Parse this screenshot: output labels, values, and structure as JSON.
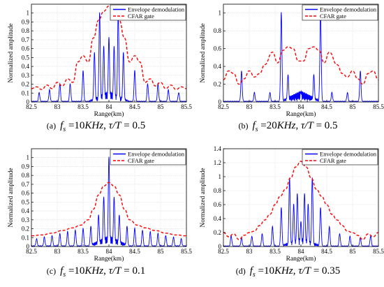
{
  "legend": {
    "envelope": "Envelope demodulation",
    "cfar": "CFAR gate"
  },
  "colors": {
    "envelope": "#0000ff",
    "cfar": "#ff0000"
  },
  "chart_data": [
    {
      "type": "line",
      "caption_tag": "(a)",
      "caption_eq": "f_s = 10KHz, τ/T = 0.5",
      "caption_parts": [
        "f",
        "s",
        " =10",
        "KHz",
        ", ",
        "τ",
        "/",
        "T",
        " = 0.5"
      ],
      "xlabel": "Range(km)",
      "ylabel": "Normalized amplitude",
      "xlim": [
        82.5,
        85.5
      ],
      "ylim": [
        0,
        1.1
      ],
      "xticks": [
        82.5,
        83,
        83.5,
        84,
        84.5,
        85,
        85.5
      ],
      "yticks": [
        0,
        0.1,
        0.2,
        0.3,
        0.4,
        0.5,
        0.6,
        0.7,
        0.8,
        0.9,
        1
      ],
      "xtick_labels": [
        "82.5",
        "83",
        "83.5",
        "84",
        "84.5",
        "85",
        "85.5"
      ],
      "ytick_labels": [
        "0",
        "0.1",
        "0.2",
        "0.3",
        "0.4",
        "0.5",
        "0.6",
        "0.7",
        "0.8",
        "0.9",
        "1"
      ],
      "grid": true,
      "legend_position": "top-right",
      "envelope_peaks": [
        [
          82.65,
          0.1
        ],
        [
          82.85,
          0.13
        ],
        [
          83.05,
          0.2
        ],
        [
          83.25,
          0.2
        ],
        [
          83.5,
          0.35
        ],
        [
          83.72,
          0.55
        ],
        [
          83.82,
          1.0
        ],
        [
          83.9,
          0.62
        ],
        [
          84.0,
          0.72
        ],
        [
          84.1,
          0.62
        ],
        [
          84.18,
          1.0
        ],
        [
          84.28,
          0.55
        ],
        [
          84.5,
          0.35
        ],
        [
          84.75,
          0.2
        ],
        [
          84.95,
          0.2
        ],
        [
          85.15,
          0.13
        ],
        [
          85.35,
          0.1
        ]
      ],
      "cfar_curve": [
        [
          82.5,
          0.15
        ],
        [
          82.6,
          0.17
        ],
        [
          82.7,
          0.14
        ],
        [
          82.8,
          0.19
        ],
        [
          82.9,
          0.15
        ],
        [
          83.0,
          0.22
        ],
        [
          83.1,
          0.18
        ],
        [
          83.2,
          0.26
        ],
        [
          83.3,
          0.22
        ],
        [
          83.4,
          0.45
        ],
        [
          83.5,
          0.52
        ],
        [
          83.6,
          0.45
        ],
        [
          83.7,
          0.72
        ],
        [
          83.8,
          0.92
        ],
        [
          83.9,
          1.02
        ],
        [
          84.0,
          1.08
        ],
        [
          84.1,
          1.02
        ],
        [
          84.2,
          0.92
        ],
        [
          84.3,
          0.72
        ],
        [
          84.4,
          0.45
        ],
        [
          84.5,
          0.52
        ],
        [
          84.6,
          0.45
        ],
        [
          84.7,
          0.22
        ],
        [
          84.8,
          0.26
        ],
        [
          84.9,
          0.18
        ],
        [
          85.0,
          0.22
        ],
        [
          85.1,
          0.15
        ],
        [
          85.2,
          0.19
        ],
        [
          85.3,
          0.14
        ],
        [
          85.4,
          0.17
        ],
        [
          85.5,
          0.15
        ]
      ]
    },
    {
      "type": "line",
      "caption_tag": "(b)",
      "caption_eq": "f_s = 20KHz, τ/T = 0.5",
      "caption_parts": [
        "f",
        "s",
        " =20",
        "KHz",
        ", ",
        "τ",
        "/",
        "T",
        " = 0.5"
      ],
      "xlabel": "Range(km)",
      "ylabel": "Normalized amplitude",
      "xlim": [
        82.5,
        85.5
      ],
      "ylim": [
        0,
        1.1
      ],
      "xticks": [
        82.5,
        83,
        83.5,
        84,
        84.5,
        85,
        85.5
      ],
      "yticks": [
        0,
        0.2,
        0.4,
        0.6,
        0.8,
        1
      ],
      "xtick_labels": [
        "82.5",
        "83",
        "83.5",
        "84",
        "84.5",
        "85",
        "85.5"
      ],
      "ytick_labels": [
        "0",
        "0.2",
        "0.4",
        "0.6",
        "0.8",
        "1"
      ],
      "grid": true,
      "legend_position": "top-right",
      "envelope_peaks": [
        [
          82.85,
          0.34
        ],
        [
          83.1,
          0.1
        ],
        [
          83.4,
          0.1
        ],
        [
          83.62,
          1.0
        ],
        [
          83.75,
          0.3
        ],
        [
          84.0,
          0.1
        ],
        [
          84.25,
          0.3
        ],
        [
          84.38,
          1.0
        ],
        [
          84.6,
          0.1
        ],
        [
          84.9,
          0.1
        ],
        [
          85.15,
          0.34
        ]
      ],
      "cfar_curve": [
        [
          82.5,
          0.25
        ],
        [
          82.6,
          0.35
        ],
        [
          82.7,
          0.32
        ],
        [
          82.8,
          0.2
        ],
        [
          82.9,
          0.26
        ],
        [
          83.0,
          0.35
        ],
        [
          83.1,
          0.28
        ],
        [
          83.2,
          0.32
        ],
        [
          83.3,
          0.42
        ],
        [
          83.45,
          0.56
        ],
        [
          83.55,
          0.44
        ],
        [
          83.65,
          0.58
        ],
        [
          83.75,
          0.62
        ],
        [
          83.85,
          0.6
        ],
        [
          83.95,
          0.46
        ],
        [
          84.05,
          0.46
        ],
        [
          84.15,
          0.6
        ],
        [
          84.25,
          0.62
        ],
        [
          84.35,
          0.58
        ],
        [
          84.45,
          0.44
        ],
        [
          84.55,
          0.56
        ],
        [
          84.7,
          0.42
        ],
        [
          84.8,
          0.32
        ],
        [
          84.9,
          0.28
        ],
        [
          85.0,
          0.35
        ],
        [
          85.1,
          0.26
        ],
        [
          85.2,
          0.2
        ],
        [
          85.3,
          0.32
        ],
        [
          85.4,
          0.35
        ],
        [
          85.5,
          0.25
        ]
      ]
    },
    {
      "type": "line",
      "caption_tag": "(c)",
      "caption_eq": "f_s = 10KHz, τ/T = 0.1",
      "caption_parts": [
        "f",
        "s",
        " =10",
        "KHz",
        ", ",
        "τ",
        "/",
        "T",
        " = 0.1"
      ],
      "xlabel": "Range(km)",
      "ylabel": "Normalized amplitude",
      "xlim": [
        82.5,
        85.5
      ],
      "ylim": [
        0,
        1.1
      ],
      "xticks": [
        82.5,
        83,
        83.5,
        84,
        84.5,
        85,
        85.5
      ],
      "yticks": [
        0,
        0.1,
        0.2,
        0.3,
        0.4,
        0.5,
        0.6,
        0.7,
        0.8,
        0.9,
        1
      ],
      "xtick_labels": [
        "82.5",
        "83",
        "83.5",
        "84",
        "84.5",
        "85",
        "85.5"
      ],
      "ytick_labels": [
        "0",
        "0.1",
        "0.2",
        "0.3",
        "0.4",
        "0.5",
        "0.6",
        "0.7",
        "0.8",
        "0.9",
        "1"
      ],
      "grid": true,
      "legend_position": "top-right",
      "envelope_peaks": [
        [
          82.6,
          0.08
        ],
        [
          82.75,
          0.1
        ],
        [
          82.9,
          0.12
        ],
        [
          83.05,
          0.14
        ],
        [
          83.2,
          0.16
        ],
        [
          83.35,
          0.18
        ],
        [
          83.5,
          0.2
        ],
        [
          83.65,
          0.22
        ],
        [
          83.8,
          0.35
        ],
        [
          83.9,
          0.55
        ],
        [
          84.0,
          1.0
        ],
        [
          84.1,
          0.55
        ],
        [
          84.2,
          0.35
        ],
        [
          84.35,
          0.22
        ],
        [
          84.5,
          0.2
        ],
        [
          84.65,
          0.18
        ],
        [
          84.8,
          0.16
        ],
        [
          84.95,
          0.14
        ],
        [
          85.1,
          0.12
        ],
        [
          85.25,
          0.1
        ],
        [
          85.4,
          0.08
        ]
      ],
      "cfar_curve": [
        [
          82.5,
          0.12
        ],
        [
          82.7,
          0.13
        ],
        [
          82.9,
          0.15
        ],
        [
          83.1,
          0.18
        ],
        [
          83.3,
          0.21
        ],
        [
          83.45,
          0.24
        ],
        [
          83.6,
          0.3
        ],
        [
          83.7,
          0.42
        ],
        [
          83.8,
          0.58
        ],
        [
          83.9,
          0.68
        ],
        [
          84.0,
          0.72
        ],
        [
          84.1,
          0.68
        ],
        [
          84.2,
          0.58
        ],
        [
          84.3,
          0.42
        ],
        [
          84.4,
          0.3
        ],
        [
          84.55,
          0.24
        ],
        [
          84.7,
          0.21
        ],
        [
          84.9,
          0.18
        ],
        [
          85.1,
          0.15
        ],
        [
          85.3,
          0.13
        ],
        [
          85.5,
          0.12
        ]
      ]
    },
    {
      "type": "line",
      "caption_tag": "(d)",
      "caption_eq": "f_s = 10KHz, τ/T = 0.35",
      "caption_parts": [
        "f",
        "s",
        " =10",
        "KHz",
        ", ",
        "τ",
        "/",
        "T",
        " = 0.35"
      ],
      "xlabel": "Range(km)",
      "ylabel": "Normalized amplitude",
      "xlim": [
        82.5,
        85.5
      ],
      "ylim": [
        0,
        1.4
      ],
      "xticks": [
        82.5,
        83,
        83.5,
        84,
        84.5,
        85,
        85.5
      ],
      "yticks": [
        0,
        0.2,
        0.4,
        0.6,
        0.8,
        1,
        1.2,
        1.4
      ],
      "xtick_labels": [
        "82.5",
        "83",
        "83.5",
        "84",
        "84.5",
        "85",
        "85.5"
      ],
      "ytick_labels": [
        "0",
        "0.2",
        "0.4",
        "0.6",
        "0.8",
        "1",
        "1.2",
        "1.4"
      ],
      "grid": true,
      "legend_position": "top-right",
      "envelope_peaks": [
        [
          82.65,
          0.15
        ],
        [
          82.85,
          0.12
        ],
        [
          83.05,
          0.14
        ],
        [
          83.25,
          0.18
        ],
        [
          83.45,
          0.28
        ],
        [
          83.62,
          0.55
        ],
        [
          83.78,
          0.98
        ],
        [
          83.86,
          0.6
        ],
        [
          83.93,
          0.75
        ],
        [
          84.0,
          0.35
        ],
        [
          84.07,
          0.75
        ],
        [
          84.14,
          0.6
        ],
        [
          84.22,
          0.98
        ],
        [
          84.38,
          0.55
        ],
        [
          84.55,
          0.28
        ],
        [
          84.75,
          0.18
        ],
        [
          84.95,
          0.14
        ],
        [
          85.15,
          0.12
        ],
        [
          85.35,
          0.15
        ]
      ],
      "cfar_curve": [
        [
          82.5,
          0.2
        ],
        [
          82.6,
          0.14
        ],
        [
          82.7,
          0.18
        ],
        [
          82.8,
          0.1
        ],
        [
          82.9,
          0.16
        ],
        [
          83.0,
          0.2
        ],
        [
          83.1,
          0.22
        ],
        [
          83.2,
          0.3
        ],
        [
          83.3,
          0.38
        ],
        [
          83.4,
          0.46
        ],
        [
          83.5,
          0.6
        ],
        [
          83.6,
          0.72
        ],
        [
          83.7,
          0.82
        ],
        [
          83.8,
          0.98
        ],
        [
          83.9,
          1.14
        ],
        [
          84.0,
          1.22
        ],
        [
          84.1,
          1.14
        ],
        [
          84.2,
          0.98
        ],
        [
          84.3,
          0.82
        ],
        [
          84.4,
          0.72
        ],
        [
          84.5,
          0.6
        ],
        [
          84.6,
          0.46
        ],
        [
          84.7,
          0.38
        ],
        [
          84.8,
          0.3
        ],
        [
          84.9,
          0.22
        ],
        [
          85.0,
          0.2
        ],
        [
          85.1,
          0.16
        ],
        [
          85.2,
          0.1
        ],
        [
          85.3,
          0.18
        ],
        [
          85.4,
          0.14
        ],
        [
          85.5,
          0.2
        ]
      ]
    }
  ]
}
